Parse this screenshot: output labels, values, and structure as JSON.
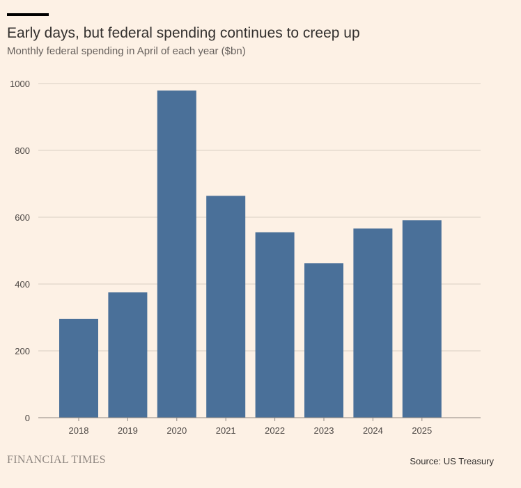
{
  "chart_data": {
    "type": "bar",
    "title": "Early days, but federal spending continues to creep up",
    "subtitle": "Monthly federal spending in April of each year ($bn)",
    "categories": [
      "2018",
      "2019",
      "2020",
      "2021",
      "2022",
      "2023",
      "2024",
      "2025"
    ],
    "values": [
      296,
      375,
      979,
      664,
      555,
      462,
      566,
      591
    ],
    "ylim": [
      0,
      1000
    ],
    "yticks": [
      0,
      200,
      400,
      600,
      800,
      1000
    ],
    "xlabel": "",
    "ylabel": "",
    "grid": true,
    "bar_color": "#4a7099"
  },
  "footer": {
    "publisher": "FINANCIAL TIMES",
    "source": "Source: US Treasury"
  },
  "colors": {
    "background": "#fdf1e5",
    "gridline": "#d9cec4",
    "axis": "#8f8781"
  }
}
